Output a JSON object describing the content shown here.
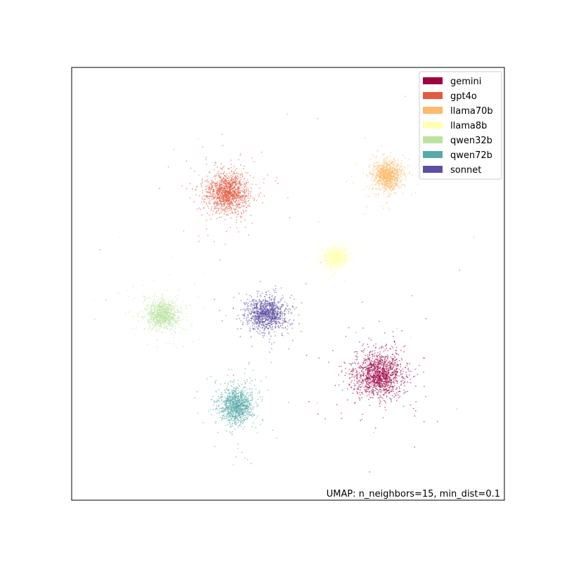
{
  "chart_data": {
    "type": "scatter",
    "title": "",
    "xlabel": "",
    "ylabel": "",
    "xlim": [
      0,
      100
    ],
    "ylim": [
      0,
      100
    ],
    "grid": false,
    "ticks": false,
    "legend_position": "top-right",
    "annotation": "UMAP: n_neighbors=15, min_dist=0.1",
    "series": [
      {
        "name": "gemini",
        "color": "#9e0142",
        "center": [
          71,
          29
        ],
        "spread": [
          5.0,
          4.6
        ],
        "count": 1400
      },
      {
        "name": "gpt4o",
        "color": "#e45a40",
        "center": [
          36,
          71
        ],
        "spread": [
          4.2,
          4.0
        ],
        "count": 1300
      },
      {
        "name": "llama70b",
        "color": "#fdb96a",
        "center": [
          73,
          75
        ],
        "spread": [
          2.8,
          3.0
        ],
        "count": 1000
      },
      {
        "name": "llama8b",
        "color": "#ffffb2",
        "center": [
          61,
          56
        ],
        "spread": [
          2.6,
          2.4
        ],
        "count": 900
      },
      {
        "name": "qwen32b",
        "color": "#bee3a0",
        "center": [
          21,
          43
        ],
        "spread": [
          3.2,
          3.0
        ],
        "count": 1000
      },
      {
        "name": "qwen72b",
        "color": "#55aaa8",
        "center": [
          38,
          22
        ],
        "spread": [
          3.4,
          3.8
        ],
        "count": 1100
      },
      {
        "name": "sonnet",
        "color": "#5e4fa2",
        "center": [
          45,
          43
        ],
        "spread": [
          4.0,
          3.2
        ],
        "count": 1100
      }
    ]
  }
}
